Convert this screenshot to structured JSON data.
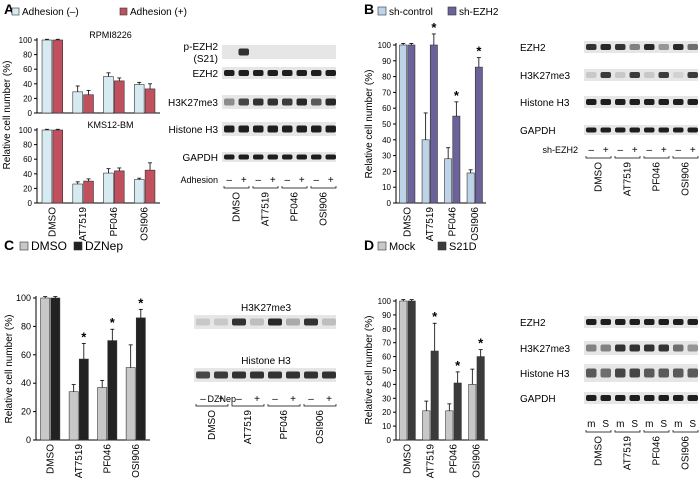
{
  "panels": [
    {
      "label": "A"
    },
    {
      "label": "B"
    },
    {
      "label": "C"
    },
    {
      "label": "D"
    }
  ],
  "chart_data": [
    {
      "id": "A1",
      "type": "bar",
      "panel": "A",
      "title": "RPMI8226",
      "categories": [
        "DMSO",
        "AT7519",
        "PF046",
        "OSI906"
      ],
      "series": [
        {
          "name": "Adhesion (–)",
          "color": "#d6eaf2",
          "values": [
            100,
            29,
            50,
            39
          ],
          "errors": [
            1,
            8,
            5,
            3
          ]
        },
        {
          "name": "Adhesion (+)",
          "color": "#c1505e",
          "values": [
            100,
            25,
            44,
            33
          ],
          "errors": [
            1,
            6,
            4,
            7
          ]
        }
      ],
      "ylim": [
        0,
        100
      ],
      "yticks": [
        0,
        20,
        40,
        60,
        80,
        100
      ],
      "ylabel": "Relative cell number (%)",
      "stars": []
    },
    {
      "id": "A2",
      "type": "bar",
      "panel": "A",
      "title": "KMS12-BM",
      "categories": [
        "DMSO",
        "AT7519",
        "PF046",
        "OSI906"
      ],
      "series": [
        {
          "name": "Adhesion (–)",
          "color": "#d6eaf2",
          "values": [
            100,
            26,
            41,
            32
          ],
          "errors": [
            1,
            3,
            6,
            2
          ]
        },
        {
          "name": "Adhesion (+)",
          "color": "#c1505e",
          "values": [
            100,
            30,
            44,
            45
          ],
          "errors": [
            1,
            3,
            4,
            10
          ]
        }
      ],
      "ylim": [
        0,
        100
      ],
      "yticks": [
        0,
        20,
        40,
        60,
        80,
        100
      ],
      "ylabel": "",
      "stars": []
    },
    {
      "id": "B",
      "type": "bar",
      "panel": "B",
      "title": "",
      "categories": [
        "DMSO",
        "AT7519",
        "PF046",
        "OSI906"
      ],
      "series": [
        {
          "name": "sh-control",
          "color": "#bcd3e8",
          "values": [
            100,
            40,
            28,
            19
          ],
          "errors": [
            1,
            17,
            7,
            2
          ]
        },
        {
          "name": "sh-EZH2",
          "color": "#6a6298",
          "values": [
            100,
            100,
            55,
            86
          ],
          "errors": [
            1,
            7,
            9,
            6
          ]
        }
      ],
      "ylim": [
        0,
        100
      ],
      "yticks": [
        0,
        10,
        20,
        30,
        40,
        50,
        60,
        70,
        80,
        90,
        100
      ],
      "ylabel": "Relative cell number (%)",
      "stars": [
        1,
        2,
        3
      ]
    },
    {
      "id": "C",
      "type": "bar",
      "panel": "C",
      "title": "",
      "categories": [
        "DMSO",
        "AT7519",
        "PF046",
        "OSI906"
      ],
      "series": [
        {
          "name": "DMSO",
          "color": "#c8c8c8",
          "values": [
            100,
            34,
            37,
            51
          ],
          "errors": [
            1,
            5,
            5,
            16
          ]
        },
        {
          "name": "DZNep",
          "color": "#222222",
          "values": [
            100,
            57,
            70,
            86
          ],
          "errors": [
            1,
            11,
            8,
            6
          ]
        }
      ],
      "ylim": [
        0,
        100
      ],
      "yticks": [
        0,
        20,
        40,
        60,
        80,
        100
      ],
      "ylabel": "Relative cell number (%)",
      "stars": [
        1,
        2,
        3
      ]
    },
    {
      "id": "D",
      "type": "bar",
      "panel": "D",
      "title": "",
      "categories": [
        "DMSO",
        "AT7519",
        "PF046",
        "OSI906"
      ],
      "series": [
        {
          "name": "Mock",
          "color": "#c8c8c8",
          "values": [
            100,
            21,
            21,
            40
          ],
          "errors": [
            1,
            7,
            5,
            11
          ]
        },
        {
          "name": "S21D",
          "color": "#3b3b3b",
          "values": [
            100,
            64,
            41,
            60
          ],
          "errors": [
            1,
            20,
            8,
            5
          ]
        }
      ],
      "ylim": [
        0,
        100
      ],
      "yticks": [
        0,
        10,
        20,
        30,
        40,
        50,
        60,
        70,
        80,
        90,
        100
      ],
      "ylabel": "Relative cell number (%)",
      "stars": [
        1,
        2,
        3
      ]
    }
  ],
  "blots": {
    "A": {
      "rows": [
        "p-EZH2\n(S21)",
        "EZH2",
        "H3K27me3",
        "Histone H3",
        "GAPDH"
      ],
      "treatment_label": "Adhesion",
      "signs": [
        "–",
        "+",
        "–",
        "+",
        "–",
        "+",
        "–",
        "+"
      ],
      "lanes": [
        "DMSO",
        "AT7519",
        "PF046",
        "OSI906"
      ]
    },
    "B": {
      "rows": [
        "EZH2",
        "H3K27me3",
        "Histone H3",
        "GAPDH"
      ],
      "treatment_label": "sh-EZH2",
      "signs": [
        "–",
        "+",
        "–",
        "+",
        "–",
        "+",
        "–",
        "+"
      ],
      "lanes": [
        "DMSO",
        "AT7519",
        "PF046",
        "OSI906"
      ]
    },
    "C": {
      "rows": [
        "H3K27me3",
        "Histone H3"
      ],
      "treatment_label": "DZNep",
      "signs": [
        "–",
        "+",
        "–",
        "+",
        "–",
        "+",
        "–",
        "+"
      ],
      "lanes": [
        "DMSO",
        "AT7519",
        "PF046",
        "OSI906"
      ]
    },
    "D": {
      "rows": [
        "EZH2",
        "H3K27me3",
        "Histone H3",
        "GAPDH"
      ],
      "treatment_label": "",
      "signs": [
        "m",
        "S",
        "m",
        "S",
        "m",
        "S",
        "m",
        "S"
      ],
      "lanes": [
        "DMSO",
        "AT7519",
        "PF046",
        "OSI906"
      ]
    }
  },
  "star_symbol": "*"
}
